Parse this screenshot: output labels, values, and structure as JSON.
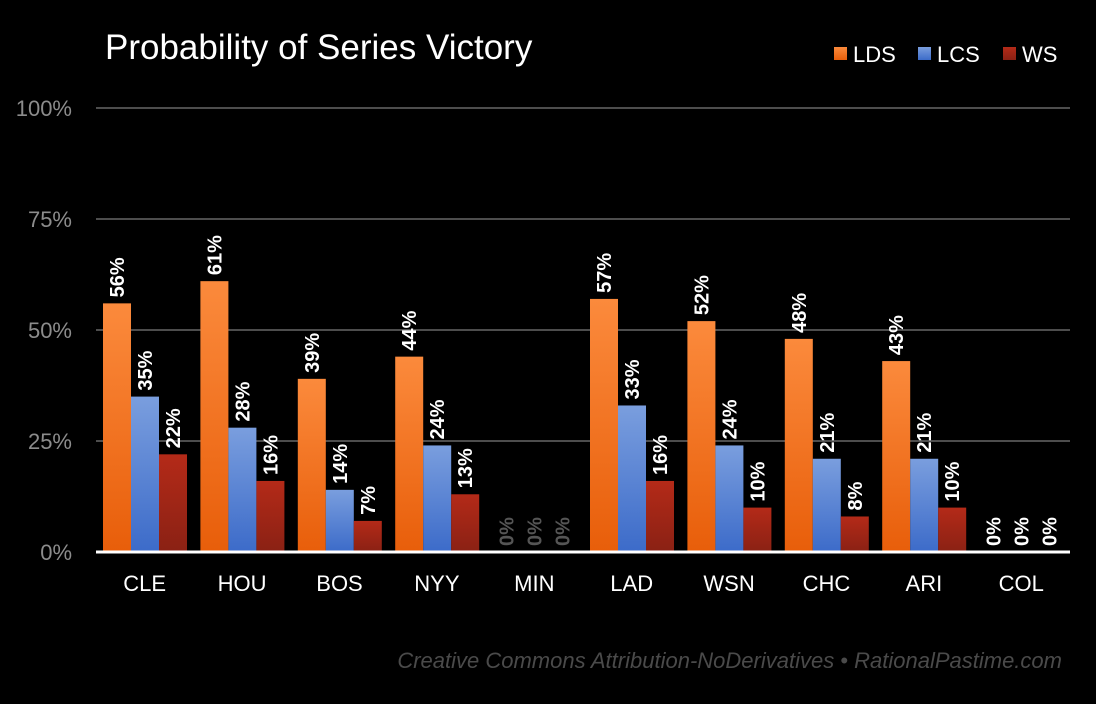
{
  "chart_data": {
    "type": "bar",
    "title": "Probability of Series Victory",
    "xlabel": "",
    "ylabel": "",
    "ylim": [
      0,
      100
    ],
    "yticks": [
      "0%",
      "25%",
      "50%",
      "75%",
      "100%"
    ],
    "ytick_values": [
      0,
      25,
      50,
      75,
      100
    ],
    "grid": true,
    "legend_position": "top-right",
    "categories": [
      "CLE",
      "HOU",
      "BOS",
      "NYY",
      "MIN",
      "LAD",
      "WSN",
      "CHC",
      "ARI",
      "COL"
    ],
    "series": [
      {
        "name": "LDS",
        "color": "#f07a24",
        "values": [
          56,
          61,
          39,
          44,
          0,
          57,
          52,
          48,
          43,
          0
        ]
      },
      {
        "name": "LCS",
        "color": "#5b84d6",
        "values": [
          35,
          28,
          14,
          24,
          0,
          33,
          24,
          21,
          21,
          0
        ]
      },
      {
        "name": "WS",
        "color": "#a52717",
        "values": [
          22,
          16,
          7,
          13,
          0,
          16,
          10,
          8,
          10,
          0
        ]
      }
    ],
    "data_labels": [
      [
        "56%",
        "35%",
        "22%"
      ],
      [
        "61%",
        "28%",
        "16%"
      ],
      [
        "39%",
        "14%",
        "7%"
      ],
      [
        "44%",
        "24%",
        "13%"
      ],
      [
        "0%",
        "0%",
        "0%"
      ],
      [
        "57%",
        "33%",
        "16%"
      ],
      [
        "52%",
        "24%",
        "10%"
      ],
      [
        "48%",
        "21%",
        "8%"
      ],
      [
        "43%",
        "21%",
        "10%"
      ],
      [
        "0%",
        "0%",
        "0%"
      ]
    ],
    "dimmed_label_categories": [
      "MIN"
    ],
    "label_color": "#ffffff",
    "dimmed_label_color": "#555555",
    "footer": "Creative Commons Attribution-NoDerivatives • RationalPastime.com"
  }
}
